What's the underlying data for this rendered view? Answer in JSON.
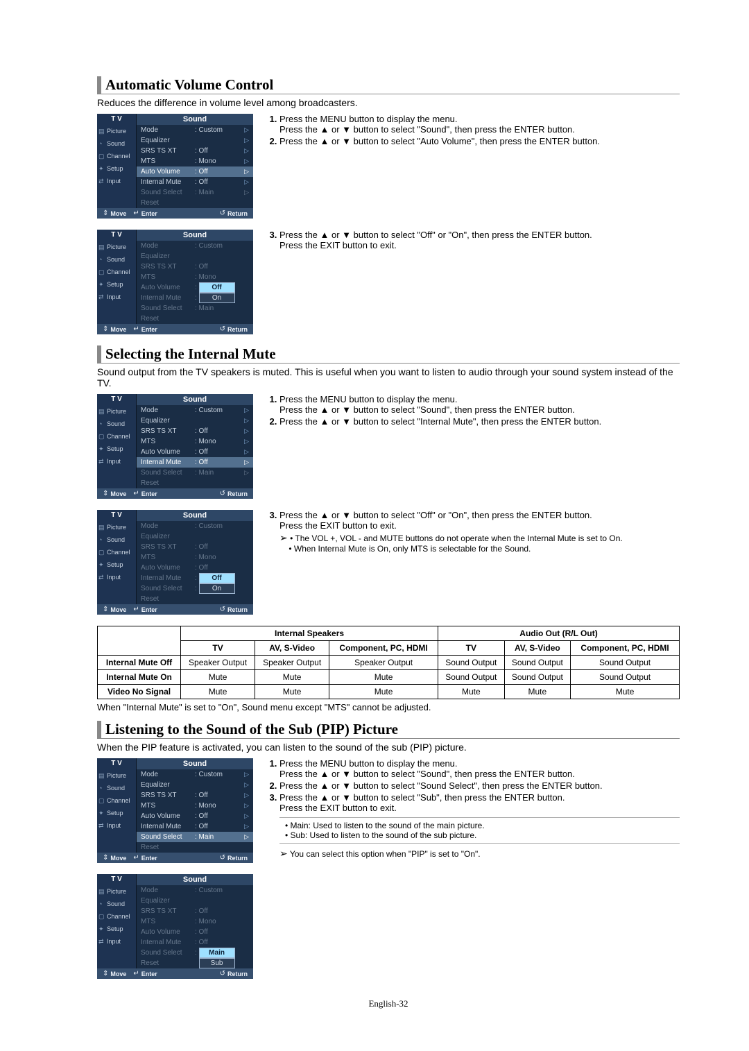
{
  "sections": {
    "auto_volume": {
      "title": "Automatic Volume Control",
      "subtitle": "Reduces the difference in volume level among broadcasters.",
      "step1a": "Press the MENU button to display the menu.",
      "step1b": "Press the ▲ or ▼ button to select \"Sound\", then press the ENTER button.",
      "step2": "Press the ▲ or ▼ button to select \"Auto Volume\", then press the ENTER button.",
      "step3a": "Press the ▲ or ▼ button to select \"Off\" or \"On\", then press the ENTER button.",
      "step3b": "Press the EXIT button to exit."
    },
    "internal_mute": {
      "title": "Selecting the Internal Mute",
      "subtitle": "Sound output from the TV speakers is muted. This is useful when you want to listen to audio through your sound system instead of the TV.",
      "step1a": "Press the MENU button to display the menu.",
      "step1b": "Press the ▲ or ▼ button to select \"Sound\", then press the ENTER button.",
      "step2": "Press the ▲ or ▼ button to select \"Internal Mute\", then press the ENTER button.",
      "step3a": "Press the ▲ or ▼ button to select \"Off\" or \"On\", then press the ENTER button.",
      "step3b": "Press the EXIT button to exit.",
      "note1": "• The VOL +, VOL - and MUTE buttons do not operate when the Internal Mute is set to On.",
      "note2": "• When Internal Mute is On, only MTS is selectable for the Sound."
    },
    "pip": {
      "title": "Listening to the Sound of the Sub (PIP) Picture",
      "subtitle": "When the PIP feature is activated, you can listen to the sound of the sub (PIP) picture.",
      "step1a": "Press the MENU button to display the menu.",
      "step1b": "Press the ▲ or ▼ button to select \"Sound\", then press the ENTER button.",
      "step2": "Press the ▲ or ▼ button to select \"Sound Select\", then press the ENTER button.",
      "step3a": "Press the ▲ or ▼ button to select \"Sub\", then press the ENTER button.",
      "step3b": "Press the EXIT button to exit.",
      "noteMain": "• Main: Used to listen to the sound of the main picture.",
      "noteSub": "• Sub: Used to listen to the sound of the sub picture.",
      "noteArrow": "You can select this option when \"PIP\" is set to \"On\"."
    }
  },
  "osd": {
    "tv": "T V",
    "title": "Sound",
    "side": [
      "Picture",
      "Sound",
      "Channel",
      "Setup",
      "Input"
    ],
    "side_icons": [
      "▤",
      "◔",
      "▢",
      "✦",
      "⇄"
    ],
    "labels": {
      "mode": "Mode",
      "equalizer": "Equalizer",
      "srs": "SRS TS XT",
      "mts": "MTS",
      "auto_volume": "Auto Volume",
      "internal_mute": "Internal Mute",
      "sound_select": "Sound Select",
      "reset": "Reset"
    },
    "vals": {
      "custom": ": Custom",
      "off": ": Off",
      "mono": ": Mono",
      "main": ": Main",
      "colon": ":"
    },
    "opts": {
      "off": "Off",
      "on": "On",
      "main": "Main",
      "sub": "Sub"
    },
    "foot": {
      "move": "Move",
      "enter": "Enter",
      "return": "Return"
    }
  },
  "table": {
    "head_internal": "Internal Speakers",
    "head_audioout": "Audio Out (R/L Out)",
    "cols": [
      "TV",
      "AV, S-Video",
      "Component, PC, HDMI",
      "TV",
      "AV, S-Video",
      "Component, PC, HDMI"
    ],
    "rows": [
      {
        "hdr": "Internal Mute Off",
        "cells": [
          "Speaker Output",
          "Speaker Output",
          "Speaker Output",
          "Sound Output",
          "Sound Output",
          "Sound Output"
        ]
      },
      {
        "hdr": "Internal Mute On",
        "cells": [
          "Mute",
          "Mute",
          "Mute",
          "Sound Output",
          "Sound Output",
          "Sound Output"
        ]
      },
      {
        "hdr": "Video No Signal",
        "cells": [
          "Mute",
          "Mute",
          "Mute",
          "Mute",
          "Mute",
          "Mute"
        ]
      }
    ],
    "note": "When \"Internal Mute\" is set to \"On\", Sound menu except \"MTS\" cannot be adjusted."
  },
  "page_foot": "English-32",
  "glyph": {
    "up": "▲",
    "down": "▼",
    "tri": "➢",
    "ret": "↺",
    "ent": "↵",
    "updown": "⇕",
    "rtri": "▷"
  }
}
